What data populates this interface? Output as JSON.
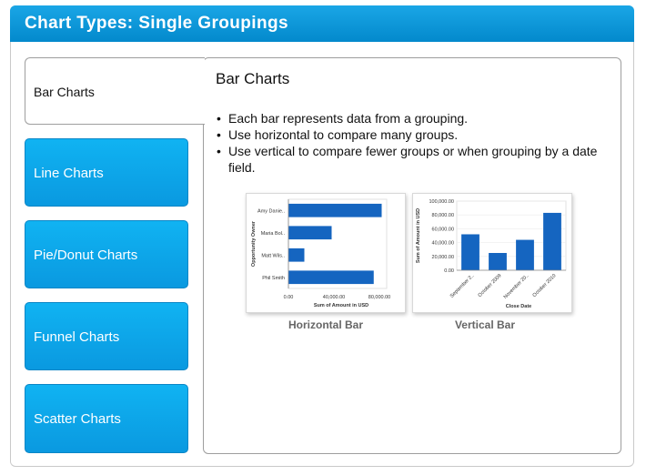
{
  "header": {
    "title": "Chart Types: Single Groupings"
  },
  "sidebar": {
    "active": {
      "label": "Bar Charts"
    },
    "items": [
      {
        "label": "Line Charts"
      },
      {
        "label": "Pie/Donut Charts"
      },
      {
        "label": "Funnel Charts"
      },
      {
        "label": "Scatter Charts"
      }
    ]
  },
  "content": {
    "title": "Bar Charts",
    "bullets": [
      "Each bar represents data from a grouping.",
      "Use horizontal to compare many groups.",
      "Use vertical to compare fewer groups or when grouping by a date field."
    ]
  },
  "colors": {
    "bar": "#1565c0",
    "header": "#0a96d8",
    "tab": "#0ea5ec"
  },
  "chart_data": [
    {
      "type": "bar",
      "orientation": "horizontal",
      "caption": "Horizontal Bar",
      "categories": [
        "Amy Danie..",
        "Maria Bol..",
        "Matt Wils..",
        "Phil Smith"
      ],
      "values": [
        82000,
        38000,
        14000,
        75000
      ],
      "xlabel": "Sum of Amount in USD",
      "ylabel": "Opportunity Owner",
      "xticks": [
        "0.00",
        "40,000.00",
        "80,000.00"
      ],
      "xlim": [
        0,
        80000
      ]
    },
    {
      "type": "bar",
      "orientation": "vertical",
      "caption": "Vertical Bar",
      "categories": [
        "September 2..",
        "October 2009",
        "November 20..",
        "October 2010"
      ],
      "values": [
        52000,
        25000,
        44000,
        83000
      ],
      "xlabel": "Close Date",
      "ylabel": "Sum of Amount in USD",
      "yticks": [
        "100,000.00",
        "80,000.00",
        "60,000.00",
        "40,000.00",
        "20,000.00",
        "0.00"
      ],
      "ylim": [
        0,
        100000
      ]
    }
  ]
}
